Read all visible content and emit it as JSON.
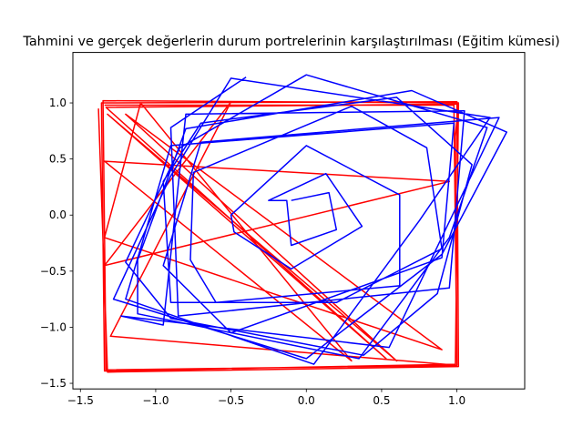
{
  "chart_data": {
    "type": "line",
    "title": "Tahmini ve gerçek değerlerin durum portrelerinin karşılaştırılması (Eğitim kümesi)",
    "xlabel": "",
    "ylabel": "",
    "xlim": [
      -1.55,
      1.45
    ],
    "ylim": [
      -1.55,
      1.45
    ],
    "xticks": [
      -1.5,
      -1.0,
      -0.5,
      0.0,
      0.5,
      1.0
    ],
    "xtick_labels": [
      "−1.5",
      "−1.0",
      "−0.5",
      "0.0",
      "0.5",
      "1.0"
    ],
    "yticks": [
      -1.5,
      -1.0,
      -0.5,
      0.0,
      0.5,
      1.0
    ],
    "ytick_labels": [
      "−1.5",
      "−1.0",
      "−0.5",
      "0.0",
      "0.5",
      "1.0"
    ],
    "grid": false,
    "series": [
      {
        "color": "#ff0000",
        "values": [
          [
            -1.38,
            0.95
          ],
          [
            -1.32,
            -1.4
          ],
          [
            1.01,
            -1.35
          ],
          [
            1.0,
            1.01
          ],
          [
            -1.36,
            1.0
          ],
          [
            -1.34,
            -1.39
          ],
          [
            0.99,
            -1.33
          ],
          [
            1.01,
            0.99
          ],
          [
            -1.33,
            0.96
          ],
          [
            0.53,
            -1.28
          ],
          [
            -1.32,
            0.9
          ],
          [
            0.6,
            -1.3
          ],
          [
            -1.2,
            0.9
          ],
          [
            0.9,
            -1.2
          ],
          [
            -1.34,
            -0.2
          ],
          [
            -1.1,
            1.0
          ],
          [
            0.3,
            -1.3
          ],
          [
            -1.34,
            0.48
          ],
          [
            0.95,
            0.3
          ],
          [
            -1.34,
            -0.45
          ],
          [
            -0.5,
            1.01
          ],
          [
            -1.3,
            -1.08
          ],
          [
            1.0,
            -1.34
          ],
          [
            0.99,
            0.7
          ],
          [
            1.01,
            1.0
          ],
          [
            -1.35,
            1.02
          ],
          [
            -1.33,
            -1.38
          ],
          [
            1.0,
            -1.34
          ],
          [
            0.98,
            0.98
          ],
          [
            -1.34,
            0.98
          ]
        ]
      },
      {
        "color": "#0000ff",
        "values": [
          [
            -0.1,
            0.13
          ],
          [
            0.15,
            0.2
          ],
          [
            0.2,
            -0.13
          ],
          [
            -0.1,
            -0.27
          ],
          [
            -0.13,
            0.13
          ],
          [
            -0.25,
            0.13
          ],
          [
            0.13,
            0.37
          ],
          [
            0.37,
            -0.1
          ],
          [
            -0.1,
            -0.48
          ],
          [
            -0.48,
            -0.15
          ],
          [
            -0.5,
            0.0
          ],
          [
            0.0,
            0.62
          ],
          [
            0.62,
            0.18
          ],
          [
            0.62,
            -0.63
          ],
          [
            -0.6,
            -0.78
          ],
          [
            -0.77,
            -0.4
          ],
          [
            -0.75,
            0.38
          ],
          [
            0.3,
            0.97
          ],
          [
            0.8,
            0.6
          ],
          [
            0.9,
            -0.3
          ],
          [
            0.2,
            -0.78
          ],
          [
            -0.9,
            -0.78
          ],
          [
            -0.95,
            0.3
          ],
          [
            -0.7,
            0.82
          ],
          [
            0.6,
            1.05
          ],
          [
            1.1,
            0.45
          ],
          [
            0.87,
            -0.7
          ],
          [
            0.38,
            -1.25
          ],
          [
            -0.9,
            -0.92
          ],
          [
            -1.2,
            -0.42
          ],
          [
            -0.84,
            0.6
          ],
          [
            0.0,
            1.25
          ],
          [
            1.2,
            0.78
          ],
          [
            0.95,
            -0.2
          ],
          [
            0.35,
            -1.28
          ],
          [
            -1.12,
            -0.88
          ],
          [
            -1.12,
            -0.4
          ],
          [
            -0.8,
            0.77
          ],
          [
            0.7,
            1.11
          ],
          [
            1.33,
            0.74
          ],
          [
            0.9,
            -0.35
          ],
          [
            0.0,
            -1.28
          ],
          [
            -1.28,
            -0.75
          ],
          [
            -0.9,
            0.35
          ],
          [
            -0.5,
            1.22
          ],
          [
            1.22,
            0.87
          ],
          [
            0.75,
            -0.05
          ],
          [
            0.05,
            -1.33
          ],
          [
            -1.2,
            -0.75
          ],
          [
            -0.9,
            0.62
          ],
          [
            0.98,
            0.82
          ],
          [
            0.9,
            -0.38
          ],
          [
            -0.5,
            -1.05
          ],
          [
            -0.95,
            -0.45
          ],
          [
            -0.7,
            0.65
          ],
          [
            1.28,
            0.87
          ],
          [
            0.55,
            -1.18
          ],
          [
            -1.23,
            -0.9
          ],
          [
            -0.95,
            -0.98
          ],
          [
            -0.8,
            0.9
          ],
          [
            1.05,
            0.93
          ],
          [
            0.95,
            -0.65
          ],
          [
            -0.85,
            -0.9
          ],
          [
            -0.9,
            0.78
          ],
          [
            -0.4,
            1.23
          ]
        ]
      }
    ]
  }
}
